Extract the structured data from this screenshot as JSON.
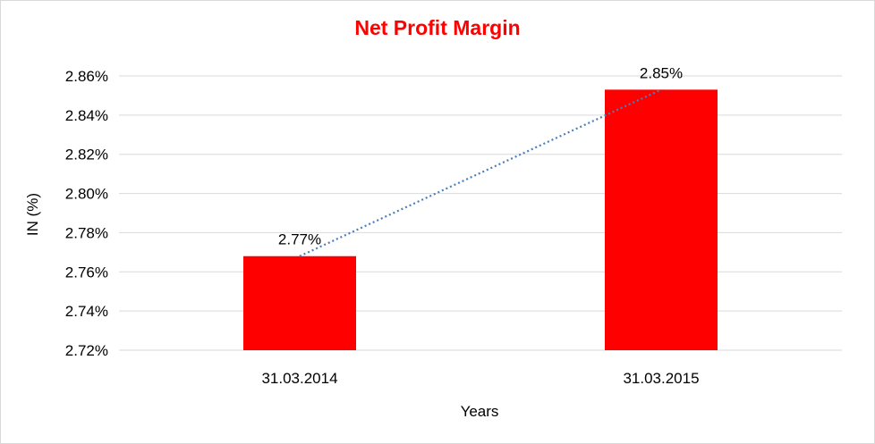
{
  "chart_data": {
    "type": "bar",
    "title": "Net Profit Margin",
    "xlabel": "Years",
    "ylabel": "IN (%)",
    "categories": [
      "31.03.2014",
      "31.03.2015"
    ],
    "values": [
      2.768,
      2.853
    ],
    "data_labels": [
      "2.77%",
      "2.85%"
    ],
    "ylim": [
      2.72,
      2.86
    ],
    "y_ticks": [
      2.72,
      2.74,
      2.76,
      2.78,
      2.8,
      2.82,
      2.84,
      2.86
    ],
    "y_tick_labels": [
      "2.72%",
      "2.74%",
      "2.76%",
      "2.78%",
      "2.80%",
      "2.82%",
      "2.84%",
      "2.86%"
    ],
    "grid": true,
    "legend": "none",
    "trendline": "linear, dotted",
    "colors": {
      "bar": "#ff0000",
      "title": "#ff0000",
      "trendline": "#4a7ebb",
      "grid": "#d9d9d9"
    }
  }
}
